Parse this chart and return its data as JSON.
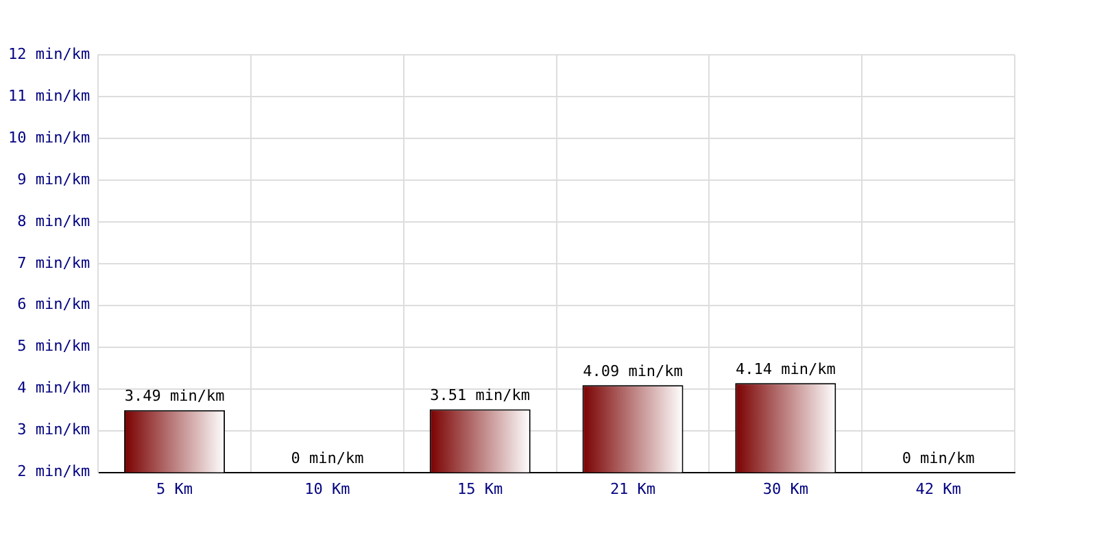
{
  "chart_data": {
    "type": "bar",
    "categories": [
      "5 Km",
      "10 Km",
      "15 Km",
      "21 Km",
      "30 Km",
      "42 Km"
    ],
    "values": [
      3.49,
      null,
      3.51,
      4.09,
      4.14,
      null
    ],
    "value_labels": [
      "3.49 min/km",
      "0 min/km",
      "3.51 min/km",
      "4.09 min/km",
      "4.14 min/km",
      "0 min/km"
    ],
    "color": "#7a0000",
    "ylim": [
      2,
      12
    ],
    "yticks": [
      {
        "value": 2,
        "label": "2 min/km"
      },
      {
        "value": 3,
        "label": "3 min/km"
      },
      {
        "value": 4,
        "label": "4 min/km"
      },
      {
        "value": 5,
        "label": "5 min/km"
      },
      {
        "value": 6,
        "label": "6 min/km"
      },
      {
        "value": 7,
        "label": "7 min/km"
      },
      {
        "value": 8,
        "label": "8 min/km"
      },
      {
        "value": 9,
        "label": "9 min/km"
      },
      {
        "value": 10,
        "label": "10 min/km"
      },
      {
        "value": 11,
        "label": "11 min/km"
      },
      {
        "value": 12,
        "label": "12 min/km"
      }
    ],
    "grid": true
  }
}
